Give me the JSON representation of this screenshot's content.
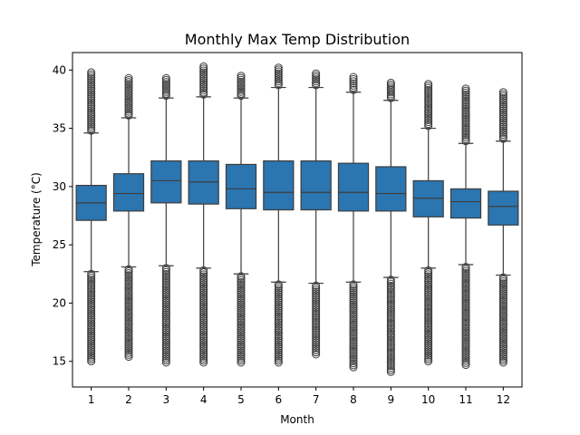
{
  "chart_data": {
    "type": "box",
    "title": "Monthly Max Temp Distribution",
    "xlabel": "Month",
    "ylabel": "Temperature (°C)",
    "ylim": [
      12.8,
      41.5
    ],
    "yticks": [
      15,
      20,
      25,
      30,
      35,
      40
    ],
    "grid": false,
    "legend": "none",
    "box_color": "#2b75b0",
    "line_color": "#3d3d3d",
    "categories": [
      "1",
      "2",
      "3",
      "4",
      "5",
      "6",
      "7",
      "8",
      "9",
      "10",
      "11",
      "12"
    ],
    "boxes": [
      {
        "month": "1",
        "whislo": 22.7,
        "q1": 27.1,
        "med": 28.6,
        "q3": 30.1,
        "whishi": 34.6,
        "flier_low": [
          15.0,
          22.5
        ],
        "flier_high": [
          34.8,
          39.8
        ]
      },
      {
        "month": "2",
        "whislo": 23.1,
        "q1": 27.9,
        "med": 29.4,
        "q3": 31.1,
        "whishi": 35.9,
        "flier_low": [
          15.4,
          22.9
        ],
        "flier_high": [
          36.1,
          39.3
        ]
      },
      {
        "month": "3",
        "whislo": 23.2,
        "q1": 28.6,
        "med": 30.5,
        "q3": 32.2,
        "whishi": 37.6,
        "flier_low": [
          14.9,
          23.0
        ],
        "flier_high": [
          37.8,
          39.3
        ]
      },
      {
        "month": "4",
        "whislo": 23.0,
        "q1": 28.5,
        "med": 30.4,
        "q3": 32.2,
        "whishi": 37.7,
        "flier_low": [
          14.9,
          22.8
        ],
        "flier_high": [
          37.9,
          40.3
        ]
      },
      {
        "month": "5",
        "whislo": 22.5,
        "q1": 28.1,
        "med": 29.8,
        "q3": 31.9,
        "whishi": 37.6,
        "flier_low": [
          14.9,
          22.3
        ],
        "flier_high": [
          37.8,
          39.5
        ]
      },
      {
        "month": "6",
        "whislo": 21.8,
        "q1": 28.0,
        "med": 29.5,
        "q3": 32.2,
        "whishi": 38.5,
        "flier_low": [
          14.9,
          21.6
        ],
        "flier_high": [
          38.7,
          40.2
        ]
      },
      {
        "month": "7",
        "whislo": 21.7,
        "q1": 28.0,
        "med": 29.5,
        "q3": 32.2,
        "whishi": 38.5,
        "flier_low": [
          15.6,
          21.5
        ],
        "flier_high": [
          38.7,
          39.7
        ]
      },
      {
        "month": "8",
        "whislo": 21.8,
        "q1": 27.9,
        "med": 29.5,
        "q3": 32.0,
        "whishi": 38.1,
        "flier_low": [
          14.5,
          21.6
        ],
        "flier_high": [
          38.3,
          39.4
        ]
      },
      {
        "month": "9",
        "whislo": 22.2,
        "q1": 27.9,
        "med": 29.4,
        "q3": 31.7,
        "whishi": 37.4,
        "flier_low": [
          14.1,
          22.0
        ],
        "flier_high": [
          37.6,
          38.9
        ]
      },
      {
        "month": "10",
        "whislo": 23.0,
        "q1": 27.4,
        "med": 29.0,
        "q3": 30.5,
        "whishi": 35.0,
        "flier_low": [
          15.0,
          22.8
        ],
        "flier_high": [
          35.2,
          38.8
        ]
      },
      {
        "month": "11",
        "whislo": 23.3,
        "q1": 27.3,
        "med": 28.7,
        "q3": 29.8,
        "whishi": 33.7,
        "flier_low": [
          14.7,
          23.1
        ],
        "flier_high": [
          33.9,
          38.4
        ]
      },
      {
        "month": "12",
        "whislo": 22.4,
        "q1": 26.7,
        "med": 28.3,
        "q3": 29.6,
        "whishi": 33.9,
        "flier_low": [
          14.9,
          22.2
        ],
        "flier_high": [
          34.1,
          38.1
        ]
      }
    ]
  }
}
